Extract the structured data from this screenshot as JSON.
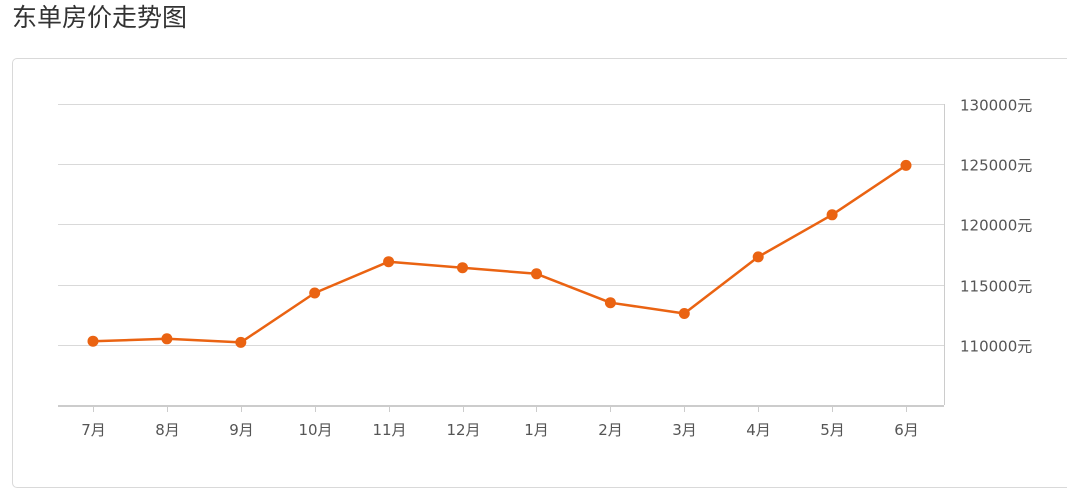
{
  "page": {
    "title": "东单房价走势图"
  },
  "chart_data": {
    "type": "line",
    "title": "东单房价走势图",
    "categories": [
      "7月",
      "8月",
      "9月",
      "10月",
      "11月",
      "12月",
      "1月",
      "2月",
      "3月",
      "4月",
      "5月",
      "6月"
    ],
    "series": [
      {
        "values": [
          110300,
          110500,
          110200,
          114300,
          116900,
          116400,
          115900,
          113500,
          112600,
          117300,
          120800,
          124900
        ]
      }
    ],
    "y_ticks": [
      110000,
      115000,
      120000,
      125000,
      130000
    ],
    "y_tick_labels": [
      "110000元",
      "115000元",
      "120000元",
      "125000元",
      "130000元"
    ],
    "ylim": [
      105000,
      130000
    ],
    "y_axis_position": "right",
    "grid": true,
    "legend": "none",
    "colors": {
      "line": "#ea6312",
      "grid": "#d9d9d9",
      "axis": "#cccccc"
    }
  }
}
